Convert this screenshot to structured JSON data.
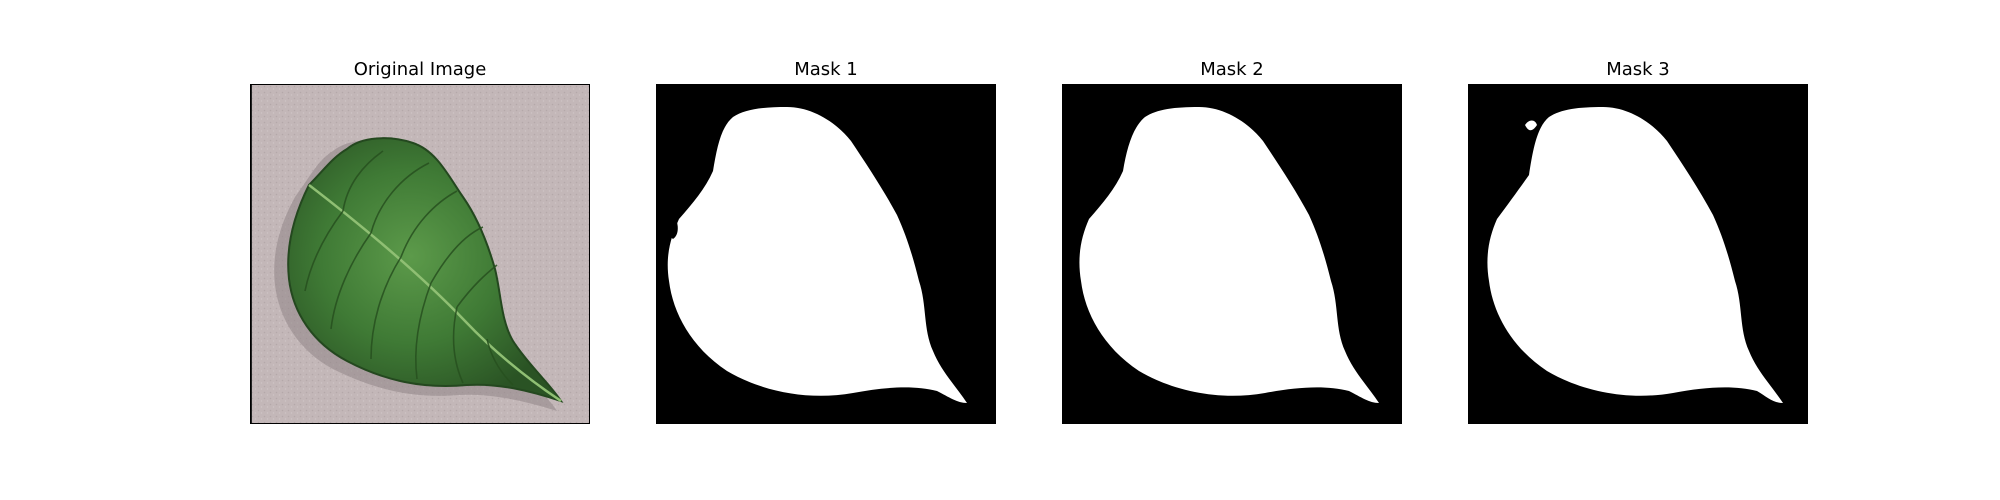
{
  "panels": [
    {
      "title": "Original Image",
      "kind": "photo"
    },
    {
      "title": "Mask 1",
      "kind": "mask"
    },
    {
      "title": "Mask 2",
      "kind": "mask"
    },
    {
      "title": "Mask 3",
      "kind": "mask"
    }
  ],
  "colors": {
    "background": "#c3b7b8",
    "leaf_dark": "#2f5e2a",
    "leaf_mid": "#3f7a35",
    "leaf_light": "#5c9a4a",
    "mask_fg": "#ffffff",
    "mask_bg": "#000000"
  }
}
